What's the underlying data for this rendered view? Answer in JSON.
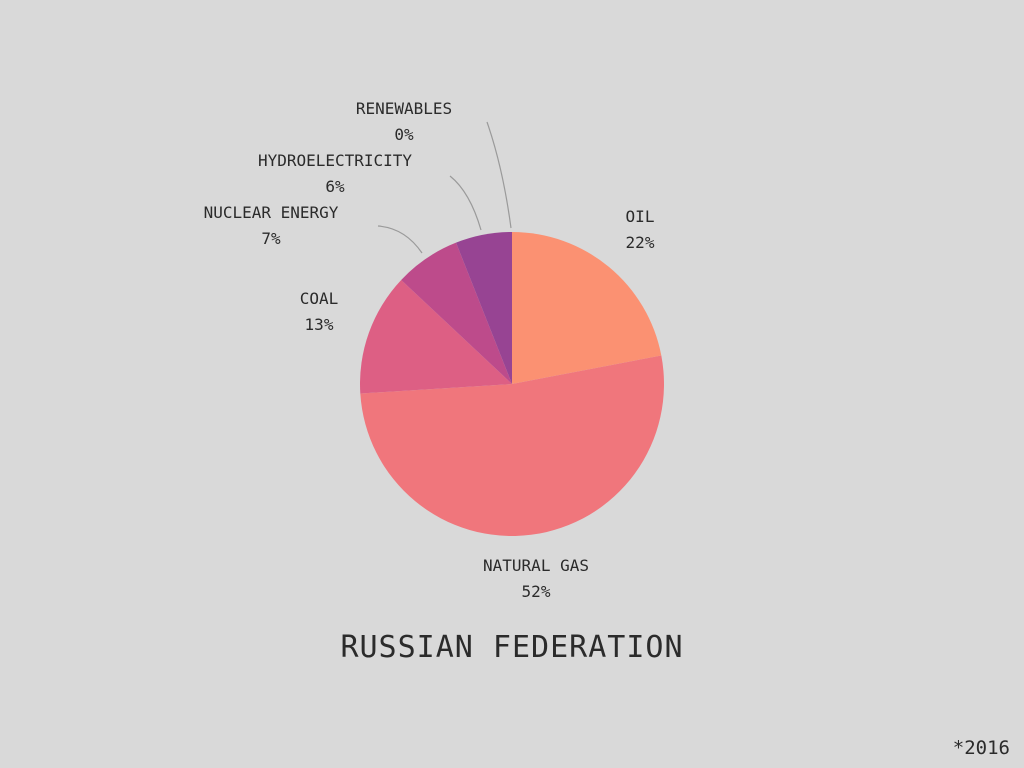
{
  "chart_data": {
    "type": "pie",
    "title": "RUSSIAN FEDERATION",
    "footnote": "*2016",
    "slices": [
      {
        "label": "OIL",
        "value": 22,
        "value_label": "22%",
        "color": "#fb9172"
      },
      {
        "label": "NATURAL GAS",
        "value": 52,
        "value_label": "52%",
        "color": "#f0767c"
      },
      {
        "label": "COAL",
        "value": 13,
        "value_label": "13%",
        "color": "#dd5f84"
      },
      {
        "label": "NUCLEAR ENERGY",
        "value": 7,
        "value_label": "7%",
        "color": "#bd4b8b"
      },
      {
        "label": "HYDROELECTRICITY",
        "value": 6,
        "value_label": "6%",
        "color": "#974493"
      },
      {
        "label": "RENEWABLES",
        "value": 0,
        "value_label": "0%",
        "color": "#7c3f95"
      }
    ]
  }
}
